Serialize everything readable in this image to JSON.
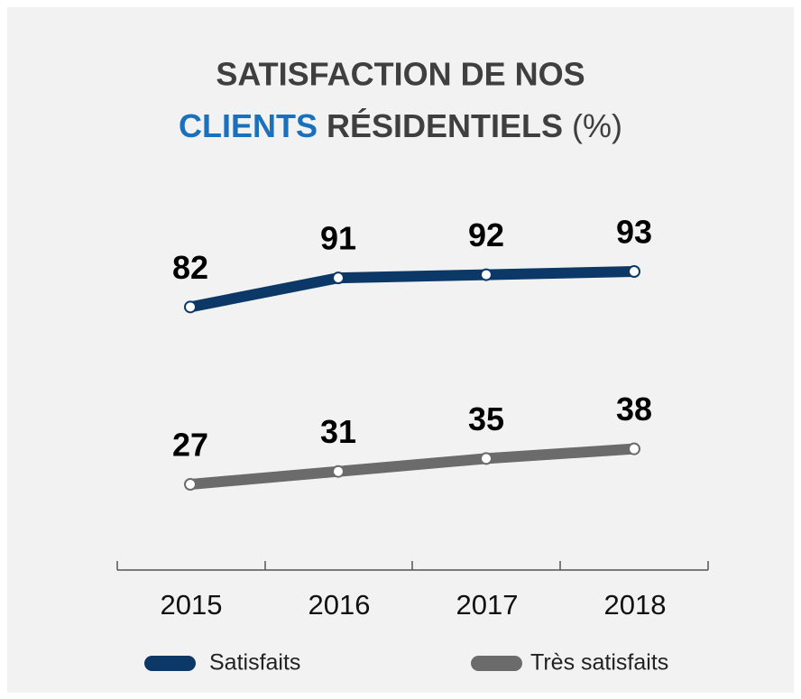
{
  "chart_data": {
    "type": "line",
    "title": [
      "SATISFACTION DE NOS",
      "CLIENTS",
      "RÉSIDENTIELS",
      "(%)"
    ],
    "categories": [
      "2015",
      "2016",
      "2017",
      "2018"
    ],
    "series": [
      {
        "name": "Satisfaits",
        "color": "#0c3868",
        "values": [
          82,
          91,
          92,
          93
        ]
      },
      {
        "name": "Très satisfaits",
        "color": "#6b6b6b",
        "values": [
          27,
          31,
          35,
          38
        ]
      }
    ],
    "title_colors": {
      "main": "#3f3f3f",
      "highlight": "#1b70bb"
    }
  }
}
